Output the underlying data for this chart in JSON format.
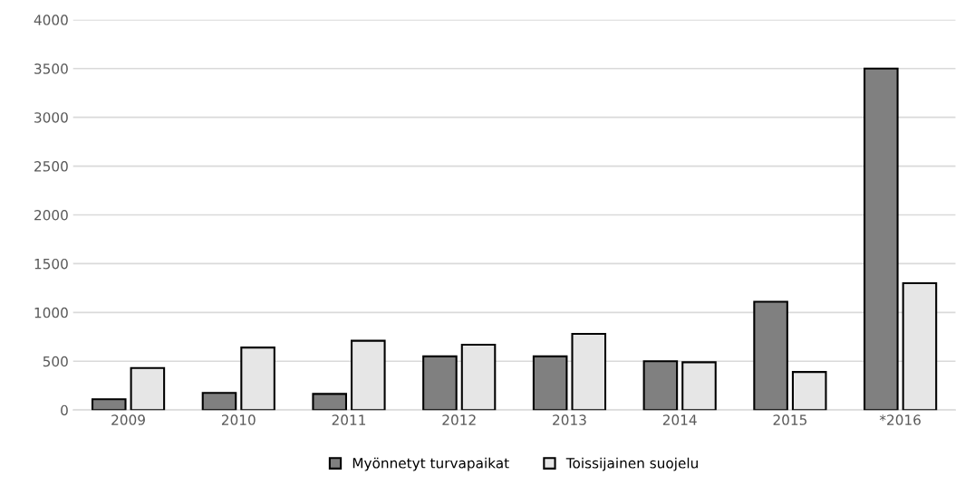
{
  "chart_data": {
    "type": "bar",
    "categories": [
      "2009",
      "2010",
      "2011",
      "2012",
      "2013",
      "2014",
      "2015",
      "*2016"
    ],
    "series": [
      {
        "name": "Myönnetyt turvapaikat",
        "color": "#808080",
        "values": [
          110,
          175,
          165,
          550,
          550,
          500,
          1110,
          3500
        ]
      },
      {
        "name": "Toissijainen suojelu",
        "color": "#e6e6e6",
        "values": [
          430,
          640,
          710,
          670,
          780,
          490,
          390,
          1300
        ]
      }
    ],
    "ylim": [
      0,
      4000
    ],
    "yticks": [
      0,
      500,
      1000,
      1500,
      2000,
      2500,
      3000,
      3500,
      4000
    ],
    "grid": "y",
    "legend": "bottom"
  }
}
